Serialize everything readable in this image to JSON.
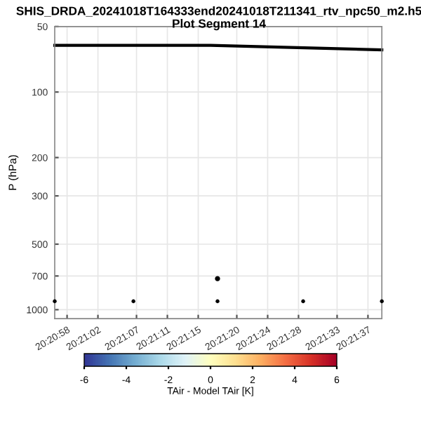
{
  "chart_data": {
    "type": "scatter",
    "title": "SHIS_DRDA_20241018T164333end20241018T211341_rtv_npc50_m2.h5",
    "subtitle": "Plot Segment 14",
    "ylabel": "P (hPa)",
    "clabel": "TAir - Model TAir [K]",
    "clim": [
      -6,
      6
    ],
    "cticks": [
      -6,
      -4,
      -2,
      0,
      2,
      4,
      6
    ],
    "log": "y",
    "ylim": [
      1100,
      50
    ],
    "yticks": [
      50,
      100,
      200,
      300,
      500,
      700,
      1000
    ],
    "xlim": [
      "2024-10-18T20:20:56.4",
      "2024-10-18T20:21:38.8"
    ],
    "xticks": [
      {
        "value": "2024-10-18T20:20:58",
        "label": "20:20:58"
      },
      {
        "value": "2024-10-18T20:21:02",
        "label": "20:21:02"
      },
      {
        "value": "2024-10-18T20:21:07",
        "label": "20:21:07"
      },
      {
        "value": "2024-10-18T20:21:11",
        "label": "20:21:11"
      },
      {
        "value": "2024-10-18T20:21:15",
        "label": "20:21:15"
      },
      {
        "value": "2024-10-18T20:21:20",
        "label": "20:21:20"
      },
      {
        "value": "2024-10-18T20:21:24",
        "label": "20:21:24"
      },
      {
        "value": "2024-10-18T20:21:28",
        "label": "20:21:28"
      },
      {
        "value": "2024-10-18T20:21:33",
        "label": "20:21:33"
      },
      {
        "value": "2024-10-18T20:21:37",
        "label": "20:21:37"
      }
    ],
    "grid": true,
    "series": [
      {
        "type": "line",
        "color": "#000000",
        "x": [
          "2024-10-18T20:20:56.4",
          "2024-10-18T20:21:16.6",
          "2024-10-18T20:21:38.8"
        ],
        "values": [
          61,
          61,
          64
        ]
      },
      {
        "color": "#000000",
        "marker": "circle",
        "x": [
          "2024-10-18T20:20:56.4",
          "2024-10-18T20:21:06.6",
          "2024-10-18T20:21:17.5",
          "2024-10-18T20:21:28.6",
          "2024-10-18T20:21:38.8"
        ],
        "values": [
          915,
          915,
          915,
          915,
          915
        ]
      },
      {
        "color": "#000000",
        "marker": "circle",
        "x": [
          "2024-10-18T20:21:17.5"
        ],
        "values": [
          720
        ]
      }
    ]
  }
}
